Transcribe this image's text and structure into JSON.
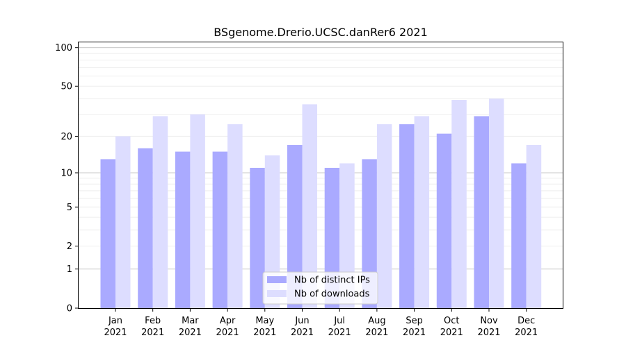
{
  "chart_data": {
    "type": "bar",
    "title": "BSgenome.Drerio.UCSC.danRer6 2021",
    "xlabel": "",
    "ylabel": "",
    "y_scale": "log(1+y)",
    "ylim": [
      0,
      110
    ],
    "y_ticks": [
      0,
      1,
      2,
      5,
      10,
      20,
      50,
      100
    ],
    "grid": "horizontal",
    "legend_position": "bottom-center",
    "categories": [
      [
        "Jan",
        "2021"
      ],
      [
        "Feb",
        "2021"
      ],
      [
        "Mar",
        "2021"
      ],
      [
        "Apr",
        "2021"
      ],
      [
        "May",
        "2021"
      ],
      [
        "Jun",
        "2021"
      ],
      [
        "Jul",
        "2021"
      ],
      [
        "Aug",
        "2021"
      ],
      [
        "Sep",
        "2021"
      ],
      [
        "Oct",
        "2021"
      ],
      [
        "Nov",
        "2021"
      ],
      [
        "Dec",
        "2021"
      ]
    ],
    "series": [
      {
        "name": "Nb of distinct IPs",
        "color": "#aaaaff",
        "values": [
          13,
          16,
          15,
          15,
          11,
          17,
          11,
          13,
          25,
          21,
          29,
          12
        ]
      },
      {
        "name": "Nb of downloads",
        "color": "#ddddff",
        "values": [
          20,
          29,
          30,
          25,
          14,
          36,
          12,
          25,
          29,
          39,
          40,
          17
        ]
      }
    ]
  }
}
